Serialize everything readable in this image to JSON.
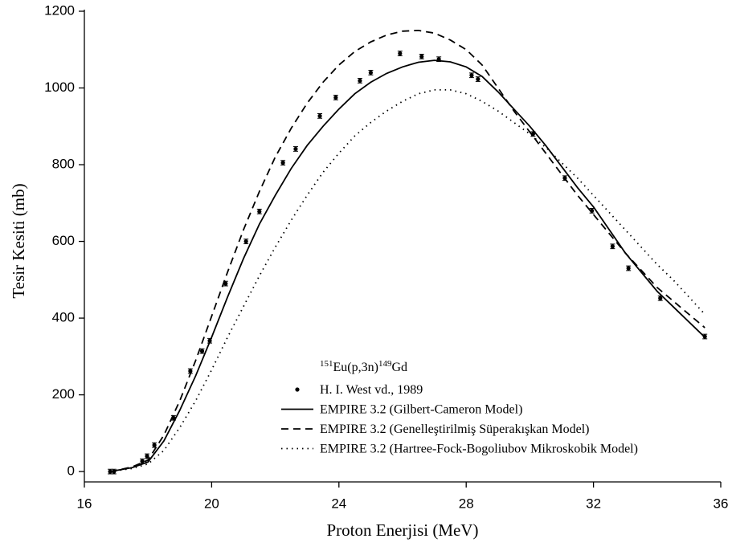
{
  "chart_data": {
    "type": "line",
    "x_label": "Proton Enerjisi (MeV)",
    "y_label": "Tesir Kesiti (mb)",
    "legend_title": [
      "151",
      "Eu(p,3n)",
      "149",
      "Gd"
    ],
    "legend_position": "bottom-center",
    "xlim": [
      16,
      36
    ],
    "ylim": [
      -27,
      1200
    ],
    "xticks": [
      16,
      20,
      24,
      28,
      32,
      36
    ],
    "yticks": [
      0,
      200,
      400,
      600,
      800,
      1000,
      1200
    ],
    "grid": false,
    "series": [
      {
        "name": "H. I. West vd., 1989",
        "kind": "scatter",
        "color": "#000000",
        "x": [
          16.81,
          16.93,
          17.82,
          17.97,
          18.2,
          18.8,
          19.33,
          19.7,
          19.94,
          20.44,
          21.08,
          21.5,
          22.24,
          22.64,
          23.4,
          23.9,
          24.66,
          25.0,
          25.92,
          26.6,
          27.14,
          28.17,
          28.37,
          30.1,
          31.1,
          31.95,
          32.6,
          33.1,
          34.1,
          35.5
        ],
        "values": [
          0,
          0,
          27,
          40,
          69,
          140,
          262,
          314,
          341,
          490,
          600,
          678,
          805,
          841,
          927,
          975,
          1019,
          1040,
          1090,
          1082,
          1075,
          1033,
          1023,
          880,
          765,
          680,
          587,
          530,
          452,
          352
        ],
        "errors": [
          6,
          6,
          6,
          6,
          6,
          6,
          6,
          6,
          6,
          6,
          6,
          6,
          6,
          6,
          6,
          6,
          6,
          6,
          6,
          6,
          6,
          6,
          6,
          6,
          6,
          6,
          6,
          6,
          6,
          6
        ]
      },
      {
        "name": "EMPIRE 3.2 (Gilbert-Cameron Model)",
        "kind": "line",
        "dash": "solid",
        "color": "#000000",
        "x": [
          16.8,
          17,
          17.5,
          18,
          18.5,
          19,
          19.5,
          20,
          20.5,
          21,
          21.5,
          22,
          22.5,
          23,
          23.5,
          24,
          24.5,
          25,
          25.5,
          26,
          26.5,
          27,
          27.5,
          28,
          28.5,
          29,
          29.5,
          30,
          30.5,
          31,
          31.5,
          32,
          32.5,
          33,
          33.5,
          34,
          34.5,
          35,
          35.5
        ],
        "values": [
          0,
          3,
          10,
          25,
          80,
          160,
          250,
          350,
          455,
          555,
          645,
          720,
          790,
          850,
          900,
          945,
          985,
          1015,
          1038,
          1055,
          1067,
          1072,
          1068,
          1055,
          1030,
          990,
          945,
          900,
          850,
          795,
          740,
          690,
          630,
          570,
          520,
          470,
          430,
          390,
          350
        ]
      },
      {
        "name": "EMPIRE 3.2 (Genelleştirilmiş Süperakışkan Model)",
        "kind": "line",
        "dash": "dashed",
        "color": "#000000",
        "x": [
          16.8,
          17,
          17.5,
          18,
          18.5,
          19,
          19.5,
          20,
          20.5,
          21,
          21.5,
          22,
          22.5,
          23,
          23.5,
          24,
          24.5,
          25,
          25.5,
          26,
          26.5,
          27,
          27.5,
          28,
          28.5,
          29,
          29.5,
          30,
          30.5,
          31,
          31.5,
          32,
          32.5,
          33,
          33.5,
          34,
          34.5,
          35,
          35.5
        ],
        "values": [
          0,
          3,
          12,
          30,
          95,
          185,
          290,
          405,
          520,
          630,
          730,
          820,
          895,
          960,
          1015,
          1060,
          1095,
          1120,
          1138,
          1148,
          1150,
          1143,
          1125,
          1100,
          1060,
          1000,
          940,
          885,
          830,
          775,
          720,
          670,
          620,
          570,
          525,
          480,
          445,
          410,
          375
        ]
      },
      {
        "name": "EMPIRE 3.2 (Hartree-Fock-Bogoliubov Mikroskobik Model)",
        "kind": "line",
        "dash": "dotted",
        "color": "#000000",
        "x": [
          16.8,
          17,
          17.5,
          18,
          18.5,
          19,
          19.5,
          20,
          20.5,
          21,
          21.5,
          22,
          22.5,
          23,
          23.5,
          24,
          24.5,
          25,
          25.5,
          26,
          26.5,
          27,
          27.5,
          28,
          28.5,
          29,
          29.5,
          30,
          30.5,
          31,
          31.5,
          32,
          32.5,
          33,
          33.5,
          34,
          34.5,
          35,
          35.5
        ],
        "values": [
          0,
          2,
          8,
          20,
          55,
          115,
          185,
          265,
          350,
          430,
          510,
          585,
          655,
          720,
          780,
          830,
          875,
          910,
          940,
          965,
          985,
          995,
          995,
          985,
          965,
          940,
          910,
          880,
          845,
          805,
          765,
          720,
          675,
          630,
          585,
          540,
          500,
          455,
          410
        ]
      }
    ]
  }
}
